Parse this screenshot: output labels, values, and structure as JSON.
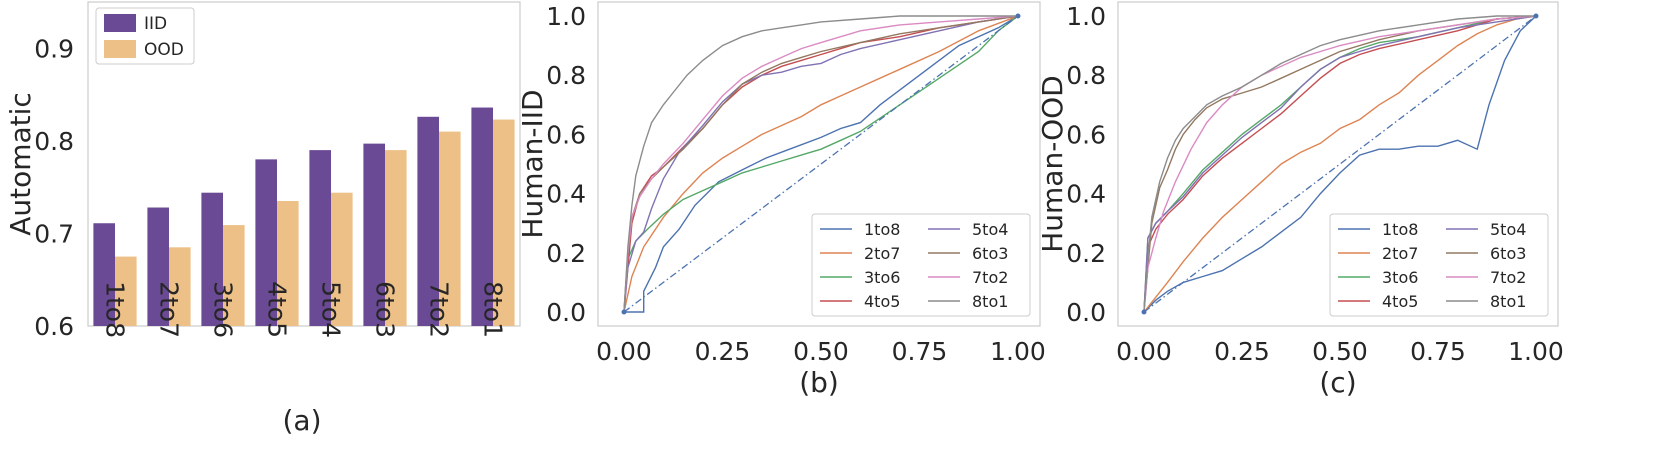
{
  "chart_data": [
    {
      "type": "bar",
      "panel_label": "(a)",
      "ylabel": "Automatic",
      "categories": [
        "1to8",
        "2to7",
        "3to6",
        "4to5",
        "5to4",
        "6to3",
        "7to2",
        "8to1"
      ],
      "ylim": [
        0.6,
        0.95
      ],
      "yticks": [
        0.6,
        0.7,
        0.8,
        0.9
      ],
      "ytick_labels": [
        "0.6",
        "0.7",
        "0.8",
        "0.9"
      ],
      "grid": false,
      "legend_placement": "top-left",
      "series": [
        {
          "name": "IID",
          "color": "#6a4a94",
          "values": [
            0.711,
            0.728,
            0.744,
            0.78,
            0.79,
            0.797,
            0.826,
            0.836
          ]
        },
        {
          "name": "OOD",
          "color": "#ecc086",
          "values": [
            0.675,
            0.685,
            0.709,
            0.735,
            0.744,
            0.79,
            0.81,
            0.823
          ]
        }
      ]
    },
    {
      "type": "line",
      "panel_label": "(b)",
      "ylabel": "Human-IID",
      "xlim": [
        0,
        1
      ],
      "ylim": [
        0,
        1
      ],
      "xticks": [
        0,
        0.25,
        0.5,
        0.75,
        1.0
      ],
      "xtick_labels": [
        "0.00",
        "0.25",
        "0.50",
        "0.75",
        "1.00"
      ],
      "yticks": [
        0,
        0.2,
        0.4,
        0.6,
        0.8,
        1.0
      ],
      "ytick_labels": [
        "0.0",
        "0.2",
        "0.4",
        "0.6",
        "0.8",
        "1.0"
      ],
      "grid": false,
      "legend_placement": "lower-right",
      "legend_columns": 2,
      "series": [
        {
          "name": "1to8",
          "color": "#4c72b0",
          "x": [
            0,
            0.05,
            0.05,
            0.08,
            0.1,
            0.14,
            0.18,
            0.24,
            0.3,
            0.36,
            0.42,
            0.5,
            0.55,
            0.6,
            0.65,
            0.75,
            0.85,
            0.95,
            1.0
          ],
          "y": [
            0,
            0,
            0.07,
            0.15,
            0.22,
            0.28,
            0.36,
            0.44,
            0.48,
            0.52,
            0.55,
            0.59,
            0.62,
            0.64,
            0.7,
            0.8,
            0.9,
            0.96,
            1.0
          ]
        },
        {
          "name": "2to7",
          "color": "#dd8452",
          "x": [
            0,
            0.02,
            0.05,
            0.1,
            0.15,
            0.2,
            0.25,
            0.3,
            0.35,
            0.4,
            0.45,
            0.5,
            0.55,
            0.6,
            0.7,
            0.8,
            0.9,
            1.0
          ],
          "y": [
            0,
            0.12,
            0.22,
            0.32,
            0.4,
            0.47,
            0.52,
            0.56,
            0.6,
            0.63,
            0.66,
            0.7,
            0.73,
            0.76,
            0.82,
            0.88,
            0.95,
            1.0
          ]
        },
        {
          "name": "3to6",
          "color": "#55a868",
          "x": [
            0,
            0.01,
            0.03,
            0.06,
            0.1,
            0.15,
            0.2,
            0.25,
            0.3,
            0.35,
            0.4,
            0.45,
            0.5,
            0.55,
            0.6,
            0.7,
            0.8,
            0.9,
            0.95,
            1.0
          ],
          "y": [
            0,
            0.18,
            0.24,
            0.28,
            0.33,
            0.38,
            0.41,
            0.44,
            0.47,
            0.49,
            0.51,
            0.53,
            0.55,
            0.58,
            0.61,
            0.7,
            0.79,
            0.88,
            0.95,
            1.0
          ]
        },
        {
          "name": "4to5",
          "color": "#c44e52",
          "x": [
            0,
            0.01,
            0.02,
            0.04,
            0.07,
            0.1,
            0.13,
            0.16,
            0.2,
            0.25,
            0.3,
            0.35,
            0.4,
            0.45,
            0.5,
            0.55,
            0.6,
            0.7,
            0.8,
            0.9,
            1.0
          ],
          "y": [
            0,
            0.15,
            0.3,
            0.4,
            0.46,
            0.49,
            0.53,
            0.57,
            0.62,
            0.7,
            0.76,
            0.8,
            0.83,
            0.85,
            0.87,
            0.89,
            0.91,
            0.93,
            0.96,
            0.98,
            1.0
          ]
        },
        {
          "name": "5to4",
          "color": "#8172b3",
          "x": [
            0,
            0.01,
            0.03,
            0.05,
            0.07,
            0.1,
            0.14,
            0.2,
            0.25,
            0.3,
            0.35,
            0.4,
            0.45,
            0.5,
            0.55,
            0.6,
            0.7,
            0.8,
            0.9,
            1.0
          ],
          "y": [
            0,
            0.15,
            0.24,
            0.27,
            0.35,
            0.45,
            0.54,
            0.63,
            0.71,
            0.77,
            0.8,
            0.81,
            0.83,
            0.84,
            0.87,
            0.89,
            0.92,
            0.95,
            0.98,
            1.0
          ]
        },
        {
          "name": "6to3",
          "color": "#937860",
          "x": [
            0,
            0.01,
            0.02,
            0.04,
            0.07,
            0.1,
            0.15,
            0.2,
            0.25,
            0.3,
            0.35,
            0.4,
            0.45,
            0.5,
            0.6,
            0.7,
            0.8,
            0.9,
            1.0
          ],
          "y": [
            0,
            0.2,
            0.32,
            0.4,
            0.45,
            0.49,
            0.55,
            0.62,
            0.7,
            0.77,
            0.81,
            0.84,
            0.86,
            0.88,
            0.91,
            0.94,
            0.96,
            0.98,
            1.0
          ]
        },
        {
          "name": "7to2",
          "color": "#da8bc3",
          "x": [
            0,
            0.01,
            0.02,
            0.04,
            0.07,
            0.1,
            0.15,
            0.2,
            0.25,
            0.3,
            0.35,
            0.4,
            0.45,
            0.5,
            0.55,
            0.6,
            0.7,
            0.8,
            0.9,
            1.0
          ],
          "y": [
            0,
            0.2,
            0.32,
            0.39,
            0.45,
            0.5,
            0.57,
            0.65,
            0.73,
            0.79,
            0.83,
            0.86,
            0.89,
            0.91,
            0.93,
            0.95,
            0.97,
            0.98,
            0.99,
            1.0
          ]
        },
        {
          "name": "8to1",
          "color": "#8c8c8c",
          "x": [
            0,
            0.01,
            0.02,
            0.03,
            0.05,
            0.07,
            0.1,
            0.13,
            0.16,
            0.2,
            0.25,
            0.3,
            0.35,
            0.4,
            0.45,
            0.5,
            0.6,
            0.7,
            0.8,
            0.9,
            1.0
          ],
          "y": [
            0,
            0.22,
            0.36,
            0.46,
            0.56,
            0.64,
            0.7,
            0.75,
            0.8,
            0.85,
            0.9,
            0.93,
            0.95,
            0.96,
            0.97,
            0.98,
            0.99,
            1.0,
            1.0,
            1.0,
            1.0
          ]
        },
        {
          "name": "",
          "color": "#4c72b0",
          "dashed": true,
          "x": [
            0,
            1
          ],
          "y": [
            0,
            1
          ]
        }
      ]
    },
    {
      "type": "line",
      "panel_label": "(c)",
      "ylabel": "Human-OOD",
      "xlim": [
        0,
        1
      ],
      "ylim": [
        0,
        1
      ],
      "xticks": [
        0,
        0.25,
        0.5,
        0.75,
        1.0
      ],
      "xtick_labels": [
        "0.00",
        "0.25",
        "0.50",
        "0.75",
        "1.00"
      ],
      "yticks": [
        0,
        0.2,
        0.4,
        0.6,
        0.8,
        1.0
      ],
      "ytick_labels": [
        "0.0",
        "0.2",
        "0.4",
        "0.6",
        "0.8",
        "1.0"
      ],
      "grid": false,
      "legend_placement": "lower-right",
      "legend_columns": 2,
      "series": [
        {
          "name": "1to8",
          "color": "#4c72b0",
          "x": [
            0,
            0.03,
            0.06,
            0.1,
            0.15,
            0.2,
            0.25,
            0.3,
            0.35,
            0.4,
            0.45,
            0.5,
            0.55,
            0.6,
            0.65,
            0.7,
            0.75,
            0.8,
            0.85,
            0.88,
            0.92,
            0.96,
            1.0
          ],
          "y": [
            0,
            0.04,
            0.07,
            0.1,
            0.12,
            0.14,
            0.18,
            0.22,
            0.27,
            0.32,
            0.4,
            0.47,
            0.53,
            0.55,
            0.55,
            0.56,
            0.56,
            0.58,
            0.55,
            0.7,
            0.85,
            0.95,
            1.0
          ]
        },
        {
          "name": "2to7",
          "color": "#dd8452",
          "x": [
            0,
            0.03,
            0.06,
            0.1,
            0.15,
            0.2,
            0.25,
            0.3,
            0.35,
            0.4,
            0.45,
            0.5,
            0.55,
            0.6,
            0.65,
            0.7,
            0.75,
            0.8,
            0.85,
            0.9,
            0.95,
            1.0
          ],
          "y": [
            0,
            0.05,
            0.1,
            0.17,
            0.25,
            0.32,
            0.38,
            0.44,
            0.5,
            0.54,
            0.57,
            0.62,
            0.65,
            0.7,
            0.74,
            0.8,
            0.85,
            0.9,
            0.94,
            0.97,
            0.99,
            1.0
          ]
        },
        {
          "name": "3to6",
          "color": "#55a868",
          "x": [
            0,
            0.01,
            0.03,
            0.06,
            0.1,
            0.15,
            0.2,
            0.25,
            0.3,
            0.35,
            0.4,
            0.45,
            0.5,
            0.55,
            0.6,
            0.7,
            0.8,
            0.9,
            1.0
          ],
          "y": [
            0,
            0.25,
            0.3,
            0.34,
            0.4,
            0.48,
            0.54,
            0.6,
            0.65,
            0.7,
            0.76,
            0.82,
            0.86,
            0.89,
            0.91,
            0.93,
            0.96,
            0.99,
            1.0
          ]
        },
        {
          "name": "4to5",
          "color": "#c44e52",
          "x": [
            0,
            0.01,
            0.03,
            0.06,
            0.1,
            0.15,
            0.2,
            0.25,
            0.3,
            0.35,
            0.4,
            0.45,
            0.5,
            0.55,
            0.6,
            0.7,
            0.8,
            0.9,
            1.0
          ],
          "y": [
            0,
            0.22,
            0.28,
            0.33,
            0.38,
            0.46,
            0.52,
            0.57,
            0.62,
            0.67,
            0.73,
            0.79,
            0.84,
            0.87,
            0.89,
            0.92,
            0.95,
            0.99,
            1.0
          ]
        },
        {
          "name": "5to4",
          "color": "#8172b3",
          "x": [
            0,
            0.01,
            0.03,
            0.06,
            0.1,
            0.15,
            0.2,
            0.25,
            0.3,
            0.35,
            0.4,
            0.45,
            0.5,
            0.55,
            0.6,
            0.7,
            0.8,
            0.9,
            1.0
          ],
          "y": [
            0,
            0.25,
            0.3,
            0.34,
            0.39,
            0.47,
            0.53,
            0.59,
            0.64,
            0.69,
            0.76,
            0.82,
            0.86,
            0.88,
            0.9,
            0.93,
            0.96,
            0.98,
            1.0
          ]
        },
        {
          "name": "6to3",
          "color": "#937860",
          "x": [
            0,
            0.01,
            0.02,
            0.04,
            0.06,
            0.08,
            0.1,
            0.13,
            0.16,
            0.2,
            0.25,
            0.3,
            0.35,
            0.4,
            0.45,
            0.5,
            0.6,
            0.7,
            0.8,
            0.9,
            1.0
          ],
          "y": [
            0,
            0.15,
            0.3,
            0.42,
            0.48,
            0.55,
            0.6,
            0.65,
            0.69,
            0.72,
            0.74,
            0.76,
            0.79,
            0.82,
            0.85,
            0.88,
            0.92,
            0.95,
            0.97,
            0.99,
            1.0
          ]
        },
        {
          "name": "7to2",
          "color": "#da8bc3",
          "x": [
            0,
            0.01,
            0.03,
            0.05,
            0.08,
            0.12,
            0.16,
            0.2,
            0.25,
            0.3,
            0.35,
            0.4,
            0.45,
            0.5,
            0.6,
            0.7,
            0.8,
            0.9,
            1.0
          ],
          "y": [
            0,
            0.15,
            0.25,
            0.34,
            0.44,
            0.55,
            0.64,
            0.7,
            0.76,
            0.8,
            0.83,
            0.86,
            0.88,
            0.9,
            0.93,
            0.95,
            0.97,
            0.99,
            1.0
          ]
        },
        {
          "name": "8to1",
          "color": "#8c8c8c",
          "x": [
            0,
            0.01,
            0.02,
            0.04,
            0.06,
            0.08,
            0.1,
            0.13,
            0.16,
            0.2,
            0.25,
            0.3,
            0.35,
            0.4,
            0.45,
            0.5,
            0.6,
            0.7,
            0.8,
            0.9,
            1.0
          ],
          "y": [
            0,
            0.18,
            0.32,
            0.44,
            0.52,
            0.58,
            0.62,
            0.66,
            0.7,
            0.73,
            0.76,
            0.8,
            0.84,
            0.87,
            0.9,
            0.92,
            0.95,
            0.97,
            0.99,
            1.0,
            1.0
          ]
        },
        {
          "name": "",
          "color": "#4c72b0",
          "dashed": true,
          "x": [
            0,
            1
          ],
          "y": [
            0,
            1
          ]
        }
      ]
    }
  ]
}
